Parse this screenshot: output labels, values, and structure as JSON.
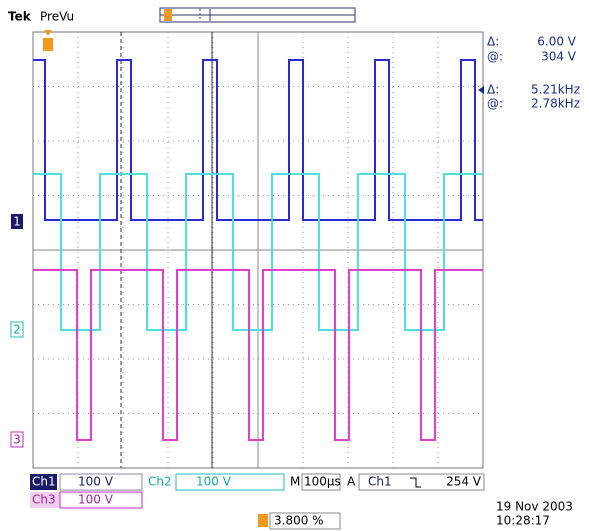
{
  "header": {
    "brand": "Tek",
    "mode": "PreVu"
  },
  "readouts": [
    {
      "label": "Δ:",
      "value": "6.00 V"
    },
    {
      "label": "@:",
      "value": "304 V"
    },
    {
      "label": "Δ:",
      "value": "5.21kHz"
    },
    {
      "label": "@:",
      "value": "2.78kHz"
    }
  ],
  "channel_markers": [
    "1",
    "2",
    "3"
  ],
  "status": {
    "ch1": {
      "name": "Ch1",
      "scale": "100 V"
    },
    "ch2": {
      "name": "Ch2",
      "scale": "100 V"
    },
    "ch3": {
      "name": "Ch3",
      "scale": "100 V"
    },
    "timebase": {
      "label": "M",
      "value": "100µs"
    },
    "trigger": {
      "label": "A",
      "source": "Ch1",
      "level": "254 V"
    }
  },
  "trigger_position": "3.800 %",
  "date": "19 Nov 2003",
  "time": "10:28:17"
}
